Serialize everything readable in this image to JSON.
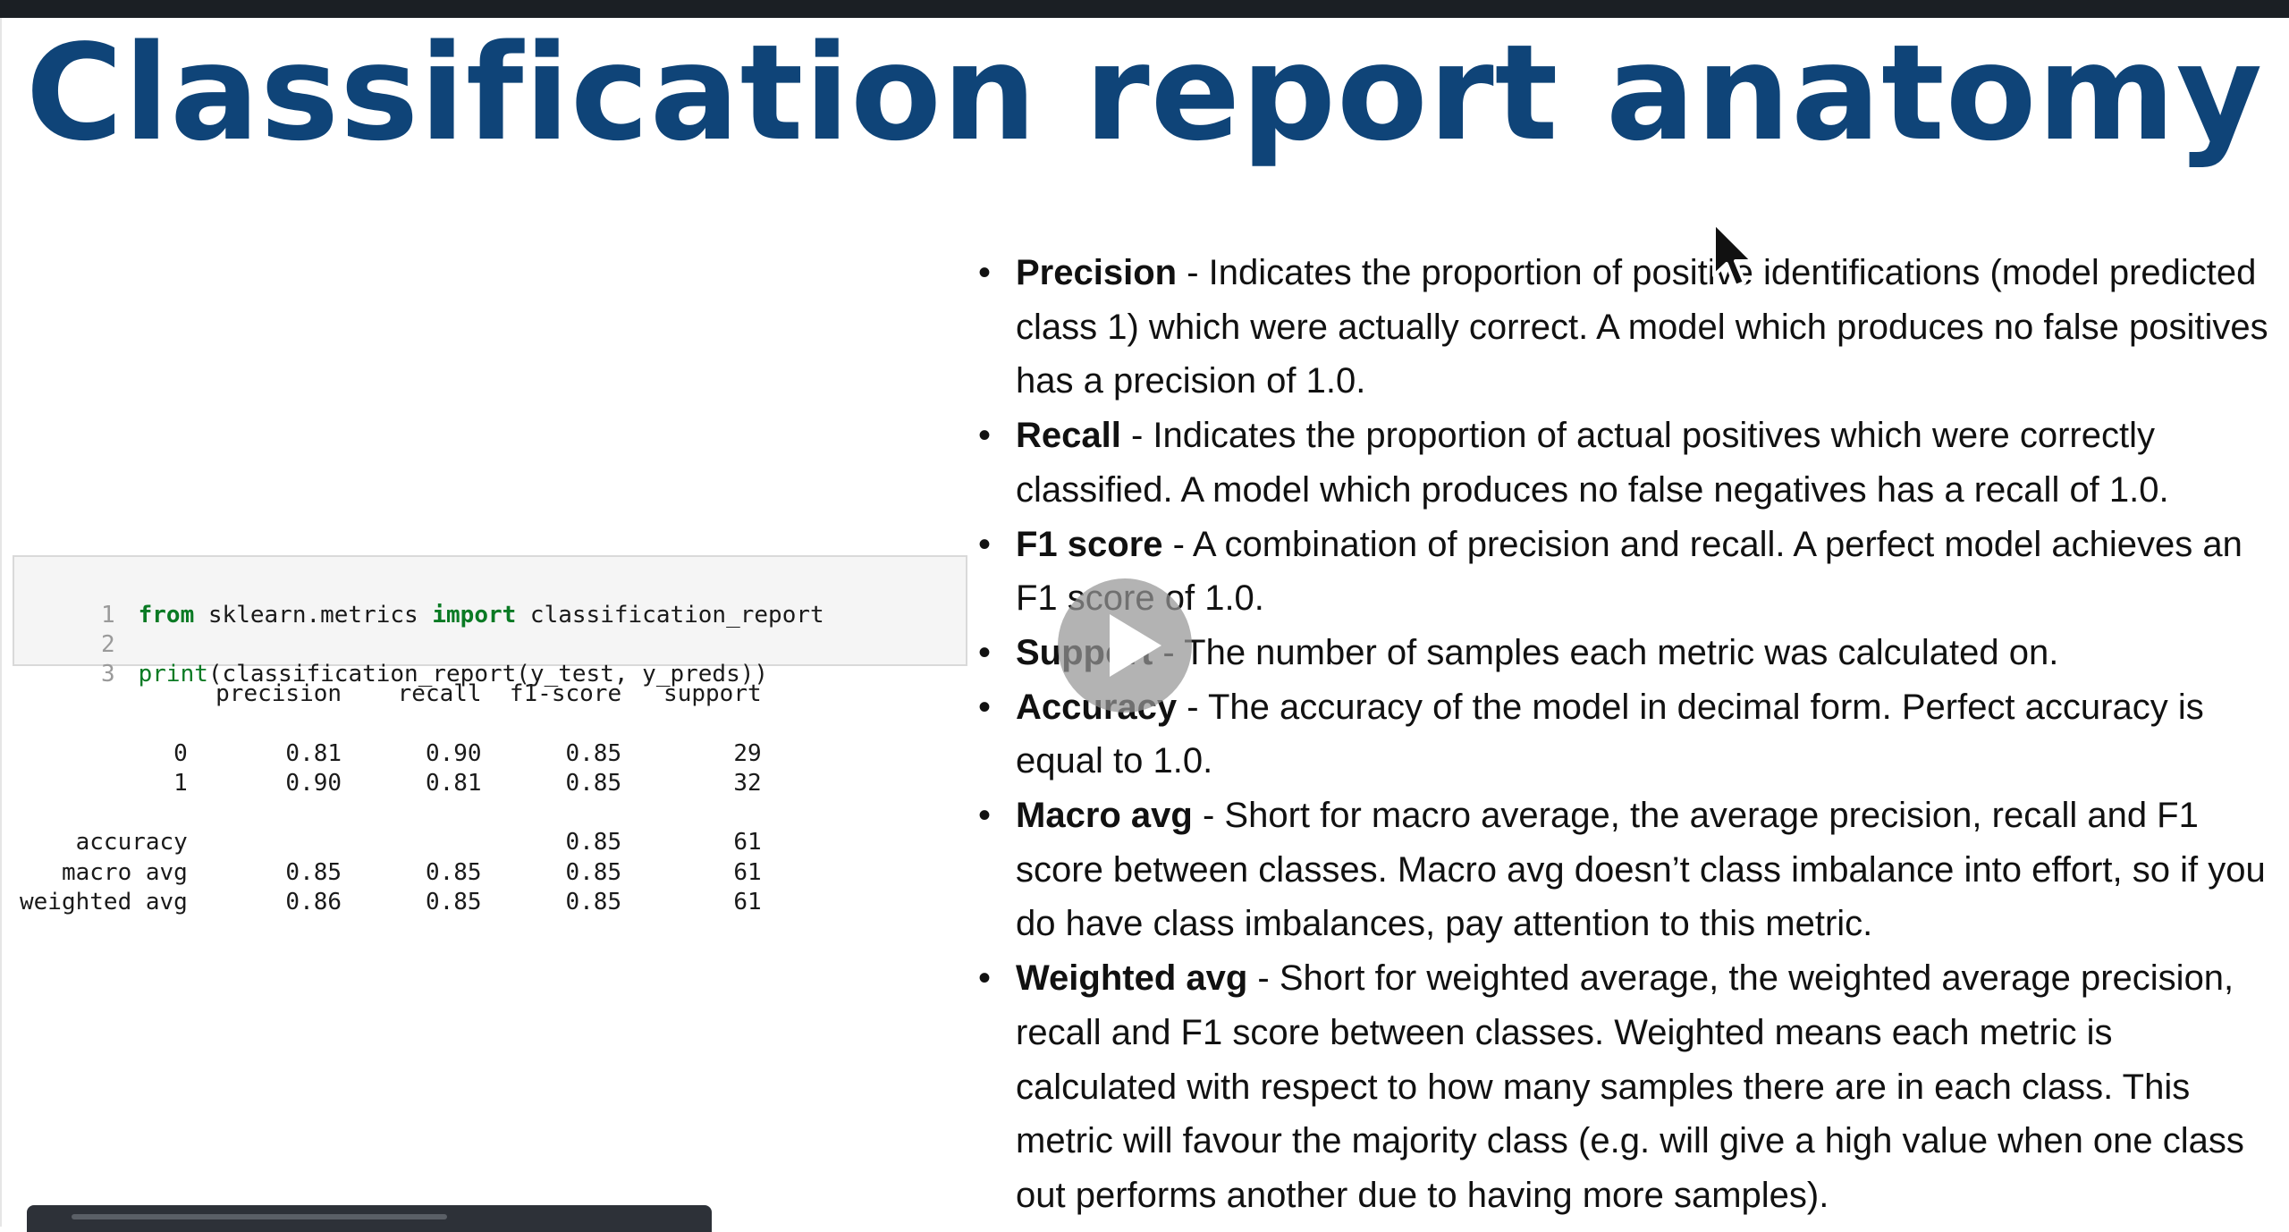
{
  "slide": {
    "title": "Classification report anatomy"
  },
  "code_cell": {
    "lines": [
      {
        "num": "1",
        "tokens": [
          {
            "text": "from",
            "type": "kw"
          },
          {
            "text": " sklearn.metrics ",
            "type": "pl"
          },
          {
            "text": "import",
            "type": "kw"
          },
          {
            "text": " classification_report",
            "type": "pl"
          }
        ]
      },
      {
        "num": "2",
        "tokens": []
      },
      {
        "num": "3",
        "tokens": [
          {
            "text": "print",
            "type": "bi"
          },
          {
            "text": "(classification_report(y_test, y_preds))",
            "type": "pl"
          }
        ]
      }
    ]
  },
  "report_output": "              precision    recall  f1-score   support\n\n           0       0.81      0.90      0.85        29\n           1       0.90      0.81      0.85        32\n\n    accuracy                           0.85        61\n   macro avg       0.85      0.85      0.85        61\nweighted avg       0.86      0.85      0.85        61",
  "bullets": [
    {
      "term": "Precision",
      "text": " - Indicates the proportion of positive identifications (model predicted class 1) which were actually correct. A model which produces no false positives has a precision of 1.0."
    },
    {
      "term": "Recall",
      "text": " - Indicates the proportion of actual positives which were correctly classified. A model which produces no false negatives has a recall of 1.0."
    },
    {
      "term": "F1 score",
      "text": " - A combination of precision and recall. A perfect model achieves an F1 score of 1.0."
    },
    {
      "term": "Support",
      "text": " - The number of samples each metric was calculated on."
    },
    {
      "term": "Accuracy",
      "text": " - The accuracy of the model in decimal form. Perfect accuracy is equal to 1.0."
    },
    {
      "term": "Macro avg",
      "text": " - Short for macro average, the average precision, recall and F1 score between classes. Macro avg doesn’t class imbalance into effort, so if you do have class imbalances, pay attention to this metric."
    },
    {
      "term": "Weighted avg",
      "text": " - Short for weighted average, the weighted average precision, recall and F1 score between classes. Weighted means each metric is calculated with respect to how many samples there are in each class. This metric will favour the majority class (e.g. will give a high value when one class out performs another due to having more samples)."
    }
  ],
  "icons": {
    "play": "play-icon",
    "cursor": "mouse-cursor-icon"
  },
  "colors": {
    "title": "#0f4478",
    "keyword": "#0a7a24"
  }
}
